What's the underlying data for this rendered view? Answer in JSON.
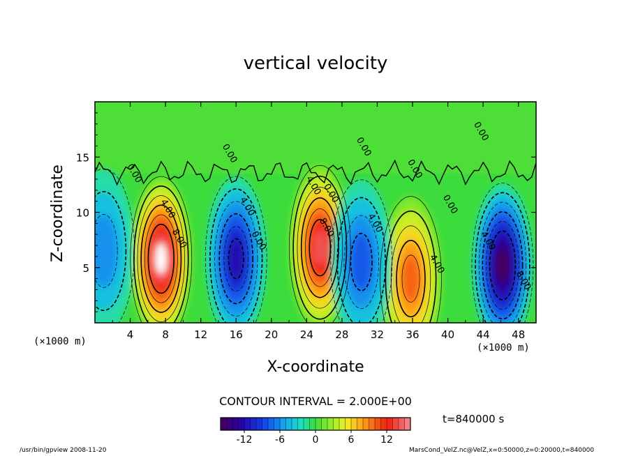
{
  "title": "vertical velocity",
  "xlabel": "X-coordinate",
  "ylabel": "Z-coordinate",
  "x_unit_left": "(×1000 m)",
  "x_unit_right": "(×1000 m)",
  "contour_interval_label": "CONTOUR INTERVAL = 2.000E+00",
  "time_label": "t=840000 s",
  "footer_left": "/usr/bin/gpview  2008-11-20",
  "footer_right": "MarsCond_VelZ.nc@VelZ,x=0:50000,z=0:20000,t=840000",
  "chart_data": {
    "type": "heatmap",
    "title": "vertical velocity",
    "xlabel": "X-coordinate",
    "ylabel": "Z-coordinate",
    "xlim": [
      0,
      50
    ],
    "ylim": [
      0,
      20
    ],
    "x_ticks": [
      4,
      8,
      12,
      16,
      20,
      24,
      28,
      32,
      36,
      40,
      44,
      48
    ],
    "y_ticks": [
      5,
      10,
      15
    ],
    "contour_interval": 2.0,
    "color_range": [
      -16,
      16
    ],
    "colorbar_ticks": [
      -12,
      -6,
      0,
      6,
      12
    ],
    "contour_labels": [
      {
        "text": "4.00",
        "x": 8,
        "y": 10.2
      },
      {
        "text": "8.00",
        "x": 9.3,
        "y": 7.5
      },
      {
        "text": "0.00",
        "x": 4.2,
        "y": 13.4
      },
      {
        "text": "0.00",
        "x": 15,
        "y": 15.2
      },
      {
        "text": "4.00",
        "x": 17,
        "y": 10.4
      },
      {
        "text": "0.00",
        "x": 18.3,
        "y": 7.3
      },
      {
        "text": "4.00",
        "x": 24.5,
        "y": 12.3
      },
      {
        "text": "0.00",
        "x": 26.5,
        "y": 11.6
      },
      {
        "text": "8.00",
        "x": 26,
        "y": 8.5
      },
      {
        "text": "0.00",
        "x": 30.2,
        "y": 15.8
      },
      {
        "text": "4.00",
        "x": 31.5,
        "y": 8.9
      },
      {
        "text": "0.00",
        "x": 36,
        "y": 13.8
      },
      {
        "text": "0.00",
        "x": 40,
        "y": 10.6
      },
      {
        "text": "4.00",
        "x": 38.5,
        "y": 5.2
      },
      {
        "text": "0.00",
        "x": 43.5,
        "y": 17.2
      },
      {
        "text": "4.00",
        "x": 44.3,
        "y": 7.3
      },
      {
        "text": "8.00",
        "x": 48.3,
        "y": 3.7
      }
    ],
    "features": [
      {
        "x": 7.5,
        "y": 5.8,
        "value": 16
      },
      {
        "x": 25.5,
        "y": 6.8,
        "value": 14
      },
      {
        "x": 35.8,
        "y": 4.0,
        "value": 10
      },
      {
        "x": 16.0,
        "y": 5.8,
        "value": -12
      },
      {
        "x": 30.2,
        "y": 5.5,
        "value": -8
      },
      {
        "x": 46.2,
        "y": 5.2,
        "value": -16
      },
      {
        "x": 1.0,
        "y": 6.5,
        "value": -6
      }
    ]
  }
}
